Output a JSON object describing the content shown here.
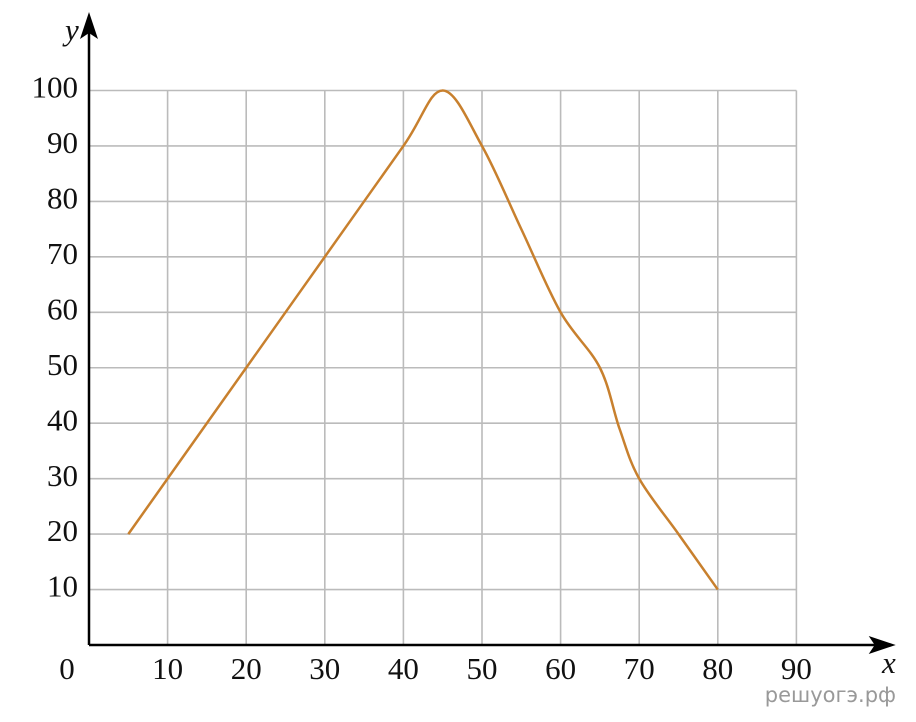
{
  "chart_data": {
    "type": "line",
    "x_label": "x",
    "y_label": "y",
    "x": [
      5,
      10,
      20,
      30,
      40,
      45,
      50,
      55,
      60,
      65,
      67.5,
      70,
      75,
      80
    ],
    "values": [
      20,
      30,
      50,
      70,
      90,
      100,
      90,
      75,
      60,
      50,
      39,
      30,
      20,
      10
    ],
    "color": "#c8802e",
    "xlim": [
      0,
      102
    ],
    "ylim": [
      0,
      112
    ],
    "xticks": [
      0,
      10,
      20,
      30,
      40,
      50,
      60,
      70,
      80,
      90
    ],
    "yticks": [
      10,
      20,
      30,
      40,
      50,
      60,
      70,
      80,
      90,
      100
    ],
    "grid": true,
    "smooth": true,
    "watermark": "решуогэ.рф"
  }
}
